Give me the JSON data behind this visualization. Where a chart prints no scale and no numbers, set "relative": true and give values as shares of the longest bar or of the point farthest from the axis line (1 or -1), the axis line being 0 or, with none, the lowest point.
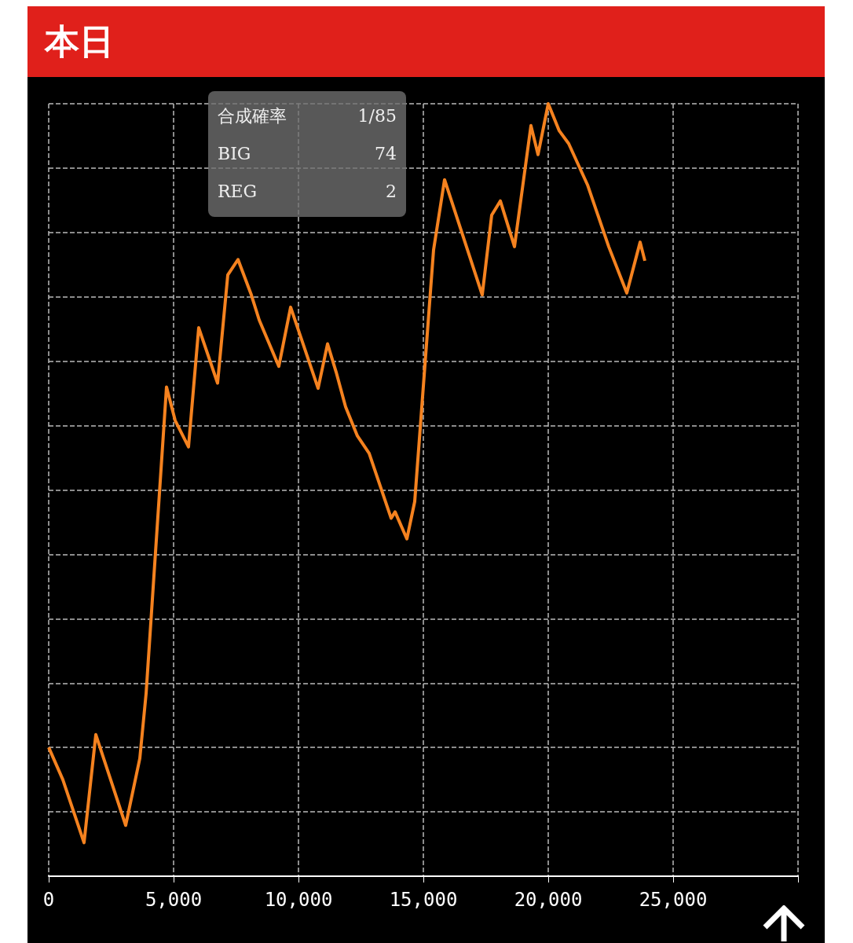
{
  "chart_data": {
    "type": "line",
    "title": "本日",
    "relative": true,
    "x": [
      0,
      566,
      1415,
      1887,
      3082,
      3648,
      3900,
      4717,
      5063,
      5597,
      6006,
      6761,
      7170,
      7579,
      8113,
      8428,
      9214,
      9686,
      10786,
      11164,
      11509,
      11887,
      12358,
      12830,
      13711,
      13868,
      14340,
      14654,
      15409,
      15849,
      17358,
      17736,
      18082,
      18648,
      19308,
      19591,
      20000,
      20440,
      20818,
      21572,
      22421,
      23145,
      23679,
      23868
    ],
    "series": [
      {
        "color": "#f5821f",
        "values": [
          0,
          -0.05,
          -0.148,
          0.02,
          -0.121,
          -0.017,
          0.084,
          0.56,
          0.508,
          0.467,
          0.652,
          0.566,
          0.734,
          0.758,
          0.703,
          0.664,
          0.592,
          0.684,
          0.558,
          0.627,
          0.583,
          0.529,
          0.484,
          0.457,
          0.356,
          0.366,
          0.324,
          0.382,
          0.773,
          0.882,
          0.703,
          0.827,
          0.849,
          0.778,
          0.966,
          0.921,
          1,
          0.958,
          0.938,
          0.874,
          0.778,
          0.706,
          0.785,
          0.756
        ]
      }
    ],
    "xlim": [
      0,
      30000
    ],
    "xticks": [
      0,
      {
        "value": 5000,
        "label": "5,000"
      },
      {
        "value": 10000,
        "label": "10,000"
      },
      {
        "value": 15000,
        "label": "15,000"
      },
      {
        "value": 20000,
        "label": "20,000"
      },
      {
        "value": 25000,
        "label": "25,000"
      },
      {
        "value": 30000,
        "label": null
      }
    ],
    "grid": true,
    "marker": "none",
    "line_style": "solid",
    "annotations": [
      "合成確率",
      "1/85",
      "BIG",
      "74",
      "REG",
      "2"
    ]
  }
}
